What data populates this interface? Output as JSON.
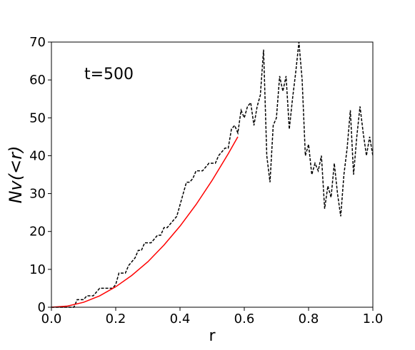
{
  "chart_data": {
    "type": "line",
    "xlabel": "r",
    "ylabel": "Nv(<r)",
    "annotation": "t=500",
    "xlim": [
      0,
      1
    ],
    "ylim": [
      0,
      70
    ],
    "xticks": [
      {
        "value": 0,
        "label": "0.0"
      },
      0.2,
      0.4,
      0.6,
      0.8,
      {
        "value": 1,
        "label": "1.0"
      }
    ],
    "yticks": [
      0,
      10,
      20,
      30,
      40,
      50,
      60,
      70
    ],
    "series": [
      {
        "color": "#000000",
        "dashed": true,
        "x": [
          0,
          0.01,
          0.02,
          0.03,
          0.04,
          0.05,
          0.06,
          0.07,
          0.08,
          0.09,
          0.1,
          0.11,
          0.12,
          0.13,
          0.14,
          0.15,
          0.16,
          0.17,
          0.18,
          0.19,
          0.2,
          0.21,
          0.22,
          0.23,
          0.24,
          0.25,
          0.26,
          0.27,
          0.28,
          0.29,
          0.3,
          0.31,
          0.32,
          0.33,
          0.34,
          0.35,
          0.36,
          0.37,
          0.38,
          0.39,
          0.4,
          0.41,
          0.42,
          0.43,
          0.44,
          0.45,
          0.46,
          0.47,
          0.48,
          0.49,
          0.5,
          0.51,
          0.52,
          0.53,
          0.54,
          0.55,
          0.56,
          0.57,
          0.58,
          0.59,
          0.6,
          0.61,
          0.62,
          0.63,
          0.64,
          0.65,
          0.66,
          0.67,
          0.68,
          0.69,
          0.7,
          0.71,
          0.72,
          0.73,
          0.74,
          0.75,
          0.76,
          0.77,
          0.78,
          0.79,
          0.8,
          0.81,
          0.82,
          0.83,
          0.84,
          0.85,
          0.86,
          0.87,
          0.88,
          0.89,
          0.9,
          0.91,
          0.92,
          0.93,
          0.94,
          0.95,
          0.96,
          0.97,
          0.98,
          0.99,
          1
        ],
        "values": [
          0,
          0,
          0,
          0,
          0,
          0,
          0,
          0,
          2,
          2,
          2,
          3,
          3,
          3,
          4,
          5,
          5,
          5,
          5,
          5,
          6,
          9,
          9,
          9,
          11,
          12,
          13,
          15,
          15,
          17,
          17,
          17,
          18,
          19,
          19,
          21,
          21,
          22,
          23,
          24,
          27,
          30,
          33,
          33,
          34,
          36,
          36,
          36,
          37,
          38,
          38,
          38,
          40,
          41,
          42,
          42,
          47,
          48,
          46,
          52,
          50,
          53,
          54,
          48,
          53,
          56,
          68,
          40,
          33,
          48,
          50,
          61,
          57,
          61,
          47,
          55,
          62,
          70,
          60,
          40,
          43,
          35,
          38,
          36,
          40,
          26,
          32,
          29,
          38,
          30,
          24,
          35,
          42,
          52,
          35,
          45,
          53,
          46,
          40,
          45,
          40
        ]
      },
      {
        "color": "#ff0000",
        "dashed": false,
        "x": [
          0,
          0.05,
          0.1,
          0.15,
          0.2,
          0.25,
          0.3,
          0.35,
          0.4,
          0.45,
          0.5,
          0.55,
          0.58
        ],
        "values": [
          0,
          0.3,
          1.3,
          3,
          5.4,
          8.4,
          12,
          16.4,
          21.4,
          27.1,
          33.5,
          40.5,
          45
        ]
      }
    ]
  }
}
